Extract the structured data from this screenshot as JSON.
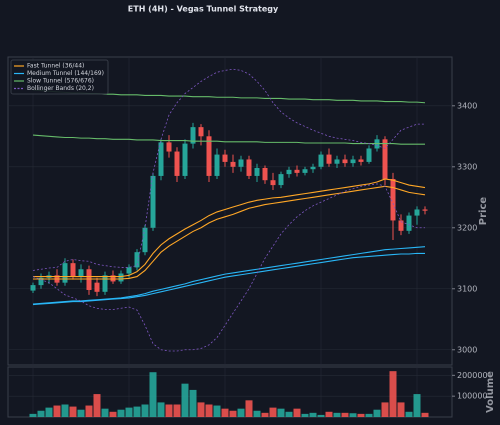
{
  "chart_data": {
    "type": "candlestick",
    "title": "ETH (4H) - Vegas Tunnel Strategy",
    "ylabel": "Price",
    "ylim": [
      2975,
      3480
    ],
    "yticks": [
      3000,
      3100,
      3200,
      3300,
      3400
    ],
    "grid": true,
    "legend": "upper left",
    "up_color": "#26a69a",
    "down_color": "#ef5350",
    "open": [
      3097,
      3106,
      3118,
      3122,
      3110,
      3142,
      3120,
      3132,
      3110,
      3095,
      3122,
      3112,
      3125,
      3135,
      3160,
      3200,
      3285,
      3340,
      3325,
      3285,
      3338,
      3365,
      3350,
      3285,
      3320,
      3308,
      3300,
      3312,
      3285,
      3298,
      3278,
      3270,
      3288,
      3295,
      3290,
      3296,
      3300,
      3320,
      3305,
      3312,
      3306,
      3312,
      3308,
      3330,
      3345,
      3280,
      3212,
      3195,
      3220,
      3230
    ],
    "high": [
      3110,
      3125,
      3128,
      3132,
      3150,
      3148,
      3140,
      3138,
      3118,
      3128,
      3130,
      3130,
      3140,
      3165,
      3205,
      3290,
      3345,
      3352,
      3332,
      3345,
      3372,
      3370,
      3360,
      3330,
      3328,
      3320,
      3318,
      3318,
      3305,
      3302,
      3290,
      3292,
      3300,
      3302,
      3300,
      3305,
      3325,
      3330,
      3318,
      3320,
      3318,
      3318,
      3335,
      3352,
      3350,
      3290,
      3222,
      3225,
      3235,
      3235
    ],
    "low": [
      3093,
      3100,
      3108,
      3105,
      3105,
      3115,
      3110,
      3090,
      3088,
      3090,
      3108,
      3108,
      3118,
      3130,
      3155,
      3195,
      3278,
      3315,
      3275,
      3280,
      3330,
      3335,
      3275,
      3280,
      3300,
      3290,
      3292,
      3280,
      3275,
      3272,
      3262,
      3265,
      3282,
      3284,
      3286,
      3290,
      3296,
      3300,
      3298,
      3300,
      3300,
      3302,
      3305,
      3325,
      3270,
      3180,
      3188,
      3190,
      3205,
      3222
    ],
    "close": [
      3106,
      3118,
      3122,
      3110,
      3142,
      3120,
      3132,
      3098,
      3095,
      3122,
      3112,
      3125,
      3135,
      3160,
      3200,
      3285,
      3340,
      3325,
      3285,
      3338,
      3365,
      3350,
      3285,
      3320,
      3308,
      3300,
      3312,
      3285,
      3298,
      3278,
      3270,
      3288,
      3295,
      3290,
      3296,
      3300,
      3320,
      3305,
      3312,
      3306,
      3312,
      3308,
      3330,
      3345,
      3280,
      3212,
      3195,
      3220,
      3230,
      3228
    ],
    "overlays": [
      {
        "name": "Fast Tunnel (36/44)",
        "color": "#ffa726",
        "dash": false,
        "upper": [
          3120,
          3120,
          3120,
          3120,
          3120,
          3120,
          3120,
          3120,
          3120,
          3120,
          3120,
          3120,
          3122,
          3128,
          3140,
          3158,
          3172,
          3182,
          3190,
          3198,
          3205,
          3212,
          3220,
          3226,
          3230,
          3234,
          3238,
          3242,
          3245,
          3247,
          3249,
          3250,
          3252,
          3254,
          3256,
          3258,
          3260,
          3262,
          3264,
          3266,
          3268,
          3270,
          3272,
          3275,
          3280,
          3278,
          3274,
          3270,
          3268,
          3266
        ],
        "lower": [
          3116,
          3116,
          3116,
          3116,
          3116,
          3116,
          3116,
          3116,
          3116,
          3116,
          3116,
          3116,
          3117,
          3120,
          3130,
          3145,
          3160,
          3170,
          3178,
          3186,
          3194,
          3200,
          3208,
          3214,
          3218,
          3222,
          3227,
          3232,
          3235,
          3238,
          3240,
          3242,
          3244,
          3246,
          3248,
          3250,
          3252,
          3254,
          3256,
          3258,
          3260,
          3262,
          3264,
          3266,
          3268,
          3266,
          3262,
          3258,
          3256,
          3254
        ]
      },
      {
        "name": "Medium Tunnel (144/169)",
        "color": "#29b6f6",
        "dash": false,
        "upper": [
          3075,
          3076,
          3077,
          3078,
          3079,
          3080,
          3080,
          3081,
          3082,
          3083,
          3084,
          3085,
          3087,
          3089,
          3092,
          3096,
          3099,
          3102,
          3105,
          3108,
          3112,
          3115,
          3118,
          3121,
          3124,
          3126,
          3128,
          3130,
          3132,
          3134,
          3136,
          3138,
          3140,
          3142,
          3144,
          3146,
          3148,
          3150,
          3152,
          3154,
          3156,
          3158,
          3160,
          3162,
          3164,
          3165,
          3166,
          3167,
          3168,
          3169
        ],
        "lower": [
          3074,
          3075,
          3076,
          3077,
          3078,
          3079,
          3079,
          3080,
          3081,
          3082,
          3083,
          3084,
          3085,
          3087,
          3089,
          3092,
          3095,
          3098,
          3101,
          3104,
          3107,
          3110,
          3113,
          3116,
          3119,
          3121,
          3123,
          3125,
          3127,
          3129,
          3131,
          3133,
          3135,
          3137,
          3139,
          3141,
          3143,
          3145,
          3147,
          3149,
          3151,
          3152,
          3153,
          3154,
          3155,
          3156,
          3157,
          3157,
          3158,
          3158
        ]
      },
      {
        "name": "Slow Tunnel (576/676)",
        "color": "#66bb6a",
        "dash": false,
        "upper": [
          3426,
          3425,
          3424,
          3423,
          3422,
          3421,
          3421,
          3420,
          3420,
          3419,
          3419,
          3418,
          3418,
          3418,
          3417,
          3417,
          3417,
          3416,
          3416,
          3416,
          3415,
          3415,
          3415,
          3414,
          3414,
          3414,
          3413,
          3413,
          3413,
          3412,
          3412,
          3412,
          3411,
          3411,
          3411,
          3410,
          3410,
          3410,
          3409,
          3409,
          3409,
          3408,
          3408,
          3408,
          3407,
          3407,
          3407,
          3406,
          3406,
          3405
        ],
        "lower": [
          3352,
          3351,
          3350,
          3349,
          3348,
          3348,
          3347,
          3347,
          3346,
          3346,
          3345,
          3345,
          3345,
          3344,
          3344,
          3344,
          3343,
          3343,
          3343,
          3343,
          3342,
          3342,
          3342,
          3342,
          3341,
          3341,
          3341,
          3341,
          3341,
          3340,
          3340,
          3340,
          3340,
          3340,
          3339,
          3339,
          3339,
          3339,
          3339,
          3339,
          3338,
          3338,
          3338,
          3338,
          3338,
          3338,
          3337,
          3337,
          3337,
          3337
        ]
      },
      {
        "name": "Bollinger Bands (20,2)",
        "color": "#7e57c2",
        "dash": true,
        "upper": [
          3130,
          3132,
          3134,
          3135,
          3145,
          3148,
          3146,
          3145,
          3140,
          3138,
          3136,
          3135,
          3135,
          3138,
          3200,
          3290,
          3345,
          3385,
          3405,
          3420,
          3430,
          3440,
          3448,
          3455,
          3458,
          3460,
          3458,
          3452,
          3440,
          3425,
          3405,
          3390,
          3380,
          3372,
          3366,
          3360,
          3355,
          3350,
          3347,
          3345,
          3343,
          3340,
          3338,
          3335,
          3330,
          3345,
          3360,
          3365,
          3370,
          3370
        ],
        "lower": [
          3120,
          3115,
          3110,
          3100,
          3090,
          3085,
          3080,
          3072,
          3068,
          3066,
          3066,
          3068,
          3070,
          3065,
          3040,
          3010,
          3000,
          2998,
          2998,
          3000,
          3000,
          3002,
          3008,
          3020,
          3040,
          3060,
          3080,
          3100,
          3125,
          3150,
          3170,
          3190,
          3205,
          3218,
          3228,
          3236,
          3242,
          3248,
          3254,
          3260,
          3264,
          3268,
          3270,
          3272,
          3268,
          3240,
          3210,
          3205,
          3200,
          3200
        ]
      }
    ],
    "volume": {
      "type": "bar",
      "ylabel": "Volume",
      "ylim": [
        0,
        240000
      ],
      "yticks": [
        100000,
        200000
      ],
      "values": [
        15000,
        30000,
        45000,
        55000,
        60000,
        50000,
        35000,
        55000,
        110000,
        40000,
        25000,
        35000,
        45000,
        50000,
        60000,
        215000,
        70000,
        60000,
        60000,
        160000,
        130000,
        70000,
        60000,
        55000,
        40000,
        30000,
        40000,
        80000,
        30000,
        20000,
        45000,
        40000,
        25000,
        40000,
        15000,
        20000,
        10000,
        25000,
        20000,
        20000,
        18000,
        15000,
        15000,
        35000,
        70000,
        220000,
        70000,
        25000,
        110000,
        20000
      ]
    }
  }
}
